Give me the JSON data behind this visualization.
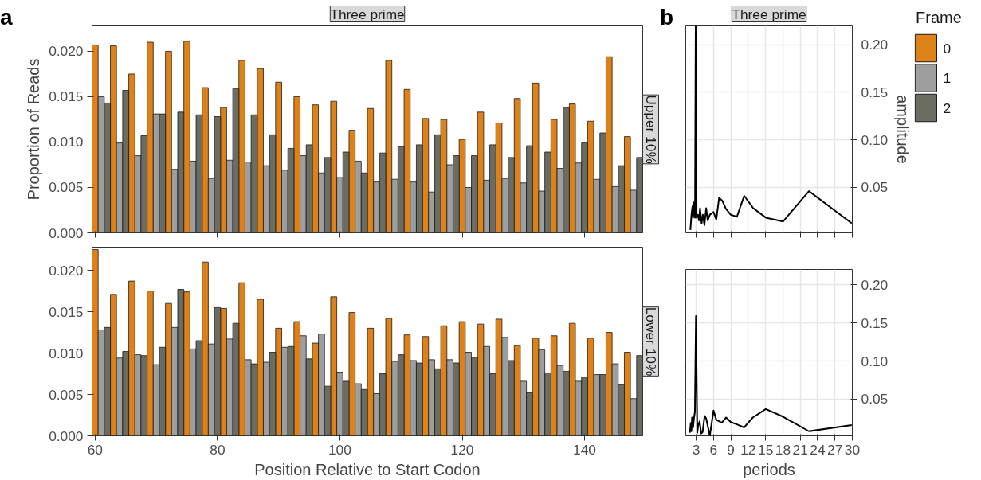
{
  "chart_data": [
    {
      "type": "bar",
      "title": "Three prime",
      "subtitle": "Upper 10%",
      "ylabel": "Proportion of Reads",
      "annotations": [
        "a"
      ],
      "legend_title": "Frame",
      "legend": "right",
      "tick_labels": "y",
      "grid": false,
      "xlim": [
        59.5,
        149.5
      ],
      "xticks": [
        60,
        80,
        100,
        120,
        140
      ],
      "ylim": [
        0,
        0.0228
      ],
      "yticks": [
        {
          "value": 0,
          "label": "0.000"
        },
        {
          "value": 0.005,
          "label": "0.005"
        },
        {
          "value": 0.01,
          "label": "0.010"
        },
        {
          "value": 0.015,
          "label": "0.015"
        },
        {
          "value": 0.02,
          "label": "0.020"
        }
      ],
      "series": [
        {
          "name": "0",
          "color": "#df8119",
          "x": [
            60,
            63,
            66,
            69,
            72,
            75,
            78,
            81,
            84,
            87,
            90,
            93,
            96,
            99,
            102,
            105,
            108,
            111,
            114,
            117,
            120,
            123,
            126,
            129,
            132,
            135,
            138,
            141,
            144,
            147
          ],
          "values": [
            0.0207,
            0.0206,
            0.0175,
            0.021,
            0.02,
            0.0211,
            0.016,
            0.0138,
            0.019,
            0.0181,
            0.0166,
            0.015,
            0.0141,
            0.0145,
            0.0113,
            0.0137,
            0.019,
            0.0158,
            0.0126,
            0.0125,
            0.0103,
            0.0133,
            0.0121,
            0.0148,
            0.0165,
            0.0125,
            0.0142,
            0.0123,
            0.0194,
            0.0106
          ]
        },
        {
          "name": "1",
          "color": "#9e9e9e",
          "x": [
            61,
            64,
            67,
            70,
            73,
            76,
            79,
            82,
            85,
            88,
            91,
            94,
            97,
            100,
            103,
            106,
            109,
            112,
            115,
            118,
            121,
            124,
            127,
            130,
            133,
            136,
            139,
            142,
            145,
            148
          ],
          "values": [
            0.015,
            0.0099,
            0.0085,
            0.0131,
            0.007,
            0.0079,
            0.006,
            0.008,
            0.0078,
            0.0074,
            0.0069,
            0.0085,
            0.0066,
            0.0061,
            0.0079,
            0.0056,
            0.0059,
            0.0056,
            0.0045,
            0.0075,
            0.005,
            0.0058,
            0.006,
            0.0055,
            0.0046,
            0.0071,
            0.0077,
            0.0059,
            0.0051,
            0.0047
          ]
        },
        {
          "name": "2",
          "color": "#6b6d62",
          "x": [
            62,
            65,
            68,
            71,
            74,
            77,
            80,
            83,
            86,
            89,
            92,
            95,
            98,
            101,
            104,
            107,
            110,
            113,
            116,
            119,
            122,
            125,
            128,
            131,
            134,
            137,
            140,
            143,
            146,
            149
          ],
          "values": [
            0.0143,
            0.0157,
            0.0107,
            0.0131,
            0.0133,
            0.013,
            0.0128,
            0.0159,
            0.013,
            0.0108,
            0.0093,
            0.0097,
            0.0083,
            0.0089,
            0.0066,
            0.0088,
            0.0095,
            0.0097,
            0.0108,
            0.0085,
            0.0085,
            0.0097,
            0.0083,
            0.0096,
            0.0089,
            0.0138,
            0.0099,
            0.011,
            0.0074,
            0.0083
          ]
        }
      ]
    },
    {
      "type": "bar",
      "subtitle": "Lower 10%",
      "xlabel": "Position Relative to Start Codon",
      "grid": false,
      "xlim": [
        59.5,
        149.5
      ],
      "xticks": [
        60,
        80,
        100,
        120,
        140
      ],
      "ylim": [
        0,
        0.0228
      ],
      "yticks": [
        {
          "value": 0,
          "label": "0.000"
        },
        {
          "value": 0.005,
          "label": "0.005"
        },
        {
          "value": 0.01,
          "label": "0.010"
        },
        {
          "value": 0.015,
          "label": "0.015"
        },
        {
          "value": 0.02,
          "label": "0.020"
        }
      ],
      "series": [
        {
          "color": "#df8119",
          "x": [
            60,
            63,
            66,
            69,
            72,
            75,
            78,
            81,
            84,
            87,
            90,
            93,
            96,
            99,
            102,
            105,
            108,
            111,
            114,
            117,
            120,
            123,
            126,
            129,
            132,
            135,
            138,
            141,
            144,
            147
          ],
          "values": [
            0.0225,
            0.0171,
            0.0187,
            0.0175,
            0.016,
            0.0174,
            0.021,
            0.0154,
            0.0185,
            0.0165,
            0.013,
            0.0138,
            0.0112,
            0.0168,
            0.0149,
            0.013,
            0.0142,
            0.0122,
            0.012,
            0.0133,
            0.0138,
            0.0135,
            0.0141,
            0.0109,
            0.0118,
            0.0121,
            0.0136,
            0.0118,
            0.0125,
            0.0101
          ]
        },
        {
          "color": "#9e9e9e",
          "x": [
            61,
            64,
            67,
            70,
            73,
            76,
            79,
            82,
            85,
            88,
            91,
            94,
            97,
            100,
            103,
            106,
            109,
            112,
            115,
            118,
            121,
            124,
            127,
            130,
            133,
            136,
            139,
            142,
            145,
            148
          ],
          "values": [
            0.0128,
            0.0094,
            0.0098,
            0.0086,
            0.0131,
            0.0105,
            0.0111,
            0.0117,
            0.0092,
            0.0089,
            0.0107,
            0.0121,
            0.0123,
            0.0077,
            0.0063,
            0.0051,
            0.009,
            0.0091,
            0.0092,
            0.0092,
            0.0101,
            0.0108,
            0.0119,
            0.0066,
            0.0104,
            0.0085,
            0.0066,
            0.0074,
            0.0087,
            0.0045
          ]
        },
        {
          "color": "#6b6d62",
          "x": [
            62,
            65,
            68,
            71,
            74,
            77,
            80,
            83,
            86,
            89,
            92,
            95,
            98,
            101,
            104,
            107,
            110,
            113,
            116,
            119,
            122,
            125,
            128,
            131,
            134,
            137,
            140,
            143,
            146,
            149
          ],
          "values": [
            0.0131,
            0.0102,
            0.0097,
            0.0107,
            0.0177,
            0.0115,
            0.0155,
            0.0136,
            0.0087,
            0.0101,
            0.0108,
            0.0093,
            0.006,
            0.0066,
            0.0056,
            0.0075,
            0.0098,
            0.0088,
            0.0081,
            0.0088,
            0.0095,
            0.0075,
            0.0091,
            0.0052,
            0.0076,
            0.0078,
            0.0071,
            0.0074,
            0.0062,
            0.0097
          ]
        }
      ]
    },
    {
      "type": "line",
      "title": "Three prime",
      "annotations": [
        "b"
      ],
      "y2label": "amplitude",
      "tick_labels": "y",
      "grid": true,
      "xlim": [
        1.2,
        30
      ],
      "xticks": [
        3,
        6,
        9,
        12,
        15,
        18,
        21,
        24,
        27,
        30
      ],
      "y2lim": [
        0.002,
        0.22
      ],
      "y2ticks": [
        {
          "value": 0.05,
          "label": "0.05"
        },
        {
          "value": 0.1,
          "label": "0.10"
        },
        {
          "value": 0.15,
          "label": "0.15"
        },
        {
          "value": 0.2,
          "label": "0.20"
        }
      ],
      "series": [
        {
          "color": "#000000",
          "axis": "y2",
          "x": [
            2.0,
            2.2,
            2.36,
            2.47,
            2.6,
            2.8,
            2.92,
            3.08,
            3.3,
            3.49,
            3.67,
            3.94,
            4.16,
            4.43,
            4.73,
            5.0,
            5.36,
            6.0,
            6.48,
            6.97,
            7.5,
            8.17,
            9.0,
            10.05,
            11.3,
            12.87,
            15.04,
            18.04,
            22.5,
            29.9
          ],
          "values": [
            0.005,
            0.022,
            0.03,
            0.018,
            0.034,
            0.018,
            0.22,
            0.018,
            0.021,
            0.015,
            0.028,
            0.012,
            0.021,
            0.01,
            0.028,
            0.015,
            0.021,
            0.024,
            0.016,
            0.039,
            0.036,
            0.027,
            0.021,
            0.019,
            0.041,
            0.028,
            0.018,
            0.014,
            0.046,
            0.012
          ]
        }
      ]
    },
    {
      "type": "line",
      "xlabel": "periods",
      "grid": true,
      "xlim": [
        1.2,
        30
      ],
      "xticks": [
        3,
        6,
        9,
        12,
        15,
        18,
        21,
        24,
        27,
        30
      ],
      "y2lim": [
        0.002,
        0.22
      ],
      "y2ticks": [
        {
          "value": 0.05,
          "label": "0.05"
        },
        {
          "value": 0.1,
          "label": "0.10"
        },
        {
          "value": 0.15,
          "label": "0.15"
        },
        {
          "value": 0.2,
          "label": "0.20"
        }
      ],
      "series": [
        {
          "color": "#000000",
          "axis": "y2",
          "x": [
            1.91,
            2.07,
            2.18,
            2.29,
            2.47,
            2.63,
            2.78,
            2.97,
            3.19,
            3.37,
            3.6,
            3.87,
            4.12,
            4.46,
            4.72,
            5.06,
            5.36,
            6.0,
            6.49,
            7.43,
            8.18,
            9.0,
            10.05,
            11.3,
            12.79,
            15.04,
            18.04,
            22.5,
            29.9
          ],
          "values": [
            0.006,
            0.019,
            0.008,
            0.026,
            0.013,
            0.026,
            0.033,
            0.159,
            0.006,
            0.016,
            0.021,
            0.005,
            0.007,
            0.028,
            0.025,
            0.013,
            0.002,
            0.035,
            0.023,
            0.019,
            0.026,
            0.02,
            0.017,
            0.013,
            0.026,
            0.037,
            0.027,
            0.008,
            0.016
          ]
        }
      ]
    }
  ]
}
